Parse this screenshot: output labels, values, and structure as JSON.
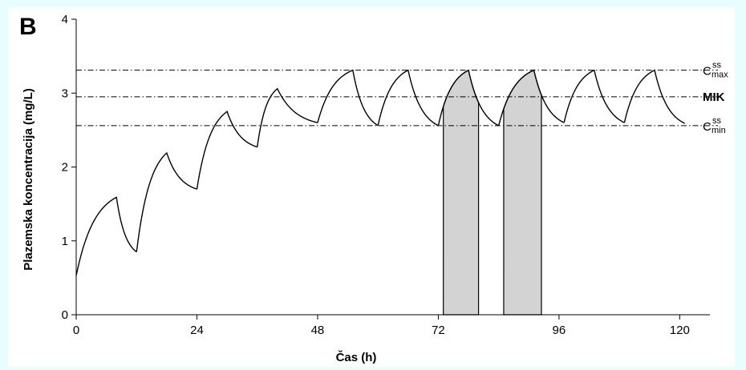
{
  "figure": {
    "panel_label": "B"
  },
  "chart_data": {
    "type": "line",
    "xlabel": "Čas (h)",
    "ylabel": "Plazemska koncentracija (mg/L)",
    "xlim": [
      0,
      126
    ],
    "ylim": [
      0,
      4
    ],
    "xticks": [
      0,
      24,
      48,
      72,
      96,
      120
    ],
    "yticks": [
      0,
      1,
      2,
      3,
      4
    ],
    "grid": false,
    "reference_lines": [
      {
        "key": "cmax",
        "value": 3.31,
        "label_main": "C",
        "label_sup": "ss",
        "label_sub": "max",
        "style": "dash-dot"
      },
      {
        "key": "mik",
        "value": 2.95,
        "label_main": "MIK",
        "style": "dash-dot"
      },
      {
        "key": "cmin",
        "value": 2.56,
        "label_main": "C",
        "label_sup": "ss",
        "label_sub": "min",
        "style": "dash-dot"
      }
    ],
    "shaded_regions": [
      {
        "x_start": 73.0,
        "x_end": 80.0,
        "fill": "#d3d3d3"
      },
      {
        "x_start": 85.0,
        "x_end": 92.5,
        "fill": "#d3d3d3"
      }
    ],
    "series": [
      {
        "color": "#000000",
        "segments": [
          {
            "x": [
              0,
              8,
              12
            ],
            "y": [
              0.53,
              1.59,
              0.85
            ]
          },
          {
            "x": [
              12,
              18,
              24
            ],
            "y": [
              0.85,
              2.19,
              1.7
            ]
          },
          {
            "x": [
              24,
              30,
              36
            ],
            "y": [
              1.7,
              2.75,
              2.27
            ]
          },
          {
            "x": [
              36,
              40,
              48
            ],
            "y": [
              2.27,
              3.06,
              2.6
            ]
          },
          {
            "x": [
              48,
              55,
              60
            ],
            "y": [
              2.6,
              3.31,
              2.56
            ]
          },
          {
            "x": [
              60,
              66,
              72
            ],
            "y": [
              2.56,
              3.31,
              2.56
            ]
          },
          {
            "x": [
              72,
              78,
              84
            ],
            "y": [
              2.56,
              3.31,
              2.56
            ]
          },
          {
            "x": [
              84,
              91,
              97
            ],
            "y": [
              2.56,
              3.31,
              2.6
            ]
          },
          {
            "x": [
              97,
              103,
              109
            ],
            "y": [
              2.6,
              3.31,
              2.6
            ]
          },
          {
            "x": [
              109,
              115,
              121
            ],
            "y": [
              2.6,
              3.31,
              2.59
            ]
          }
        ]
      }
    ]
  }
}
